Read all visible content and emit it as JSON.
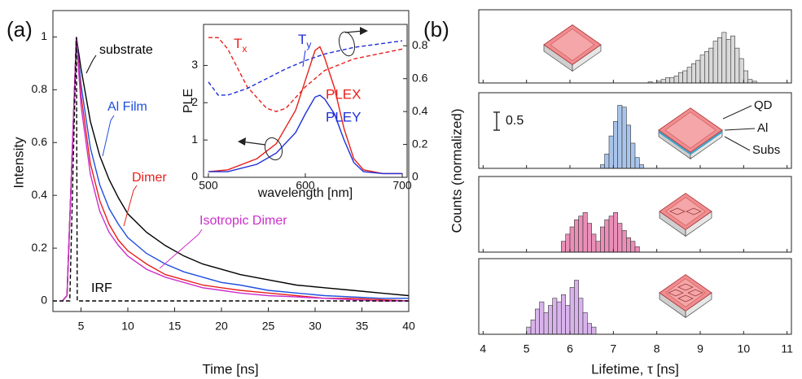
{
  "chart_data": [
    {
      "type": "line",
      "panel_label": "(a)",
      "xlabel": "Time [ns]",
      "ylabel": "Intensity",
      "xlim": [
        2,
        40
      ],
      "ylim": [
        -0.04,
        1.1
      ],
      "xticks": [
        5,
        10,
        15,
        20,
        25,
        30,
        35,
        40
      ],
      "yticks": [
        0,
        0.2,
        0.4,
        0.6,
        0.8,
        1
      ],
      "series": [
        {
          "name": "substrate",
          "color": "#000000",
          "x": [
            3,
            3.5,
            4,
            4.5,
            5,
            6,
            7,
            8,
            9,
            10,
            12,
            14,
            16,
            18,
            20,
            22,
            25,
            28,
            31,
            34,
            37,
            40
          ],
          "values": [
            0,
            0.02,
            0.5,
            1.0,
            0.88,
            0.68,
            0.55,
            0.46,
            0.39,
            0.33,
            0.26,
            0.21,
            0.17,
            0.14,
            0.12,
            0.1,
            0.08,
            0.06,
            0.05,
            0.04,
            0.03,
            0.02
          ]
        },
        {
          "name": "Al Film",
          "color": "#1f4fe0",
          "x": [
            3,
            3.5,
            4,
            4.5,
            5,
            6,
            7,
            8,
            9,
            10,
            12,
            14,
            16,
            18,
            20,
            22,
            25,
            28,
            31,
            34,
            37,
            40
          ],
          "values": [
            0,
            0.02,
            0.5,
            1.0,
            0.82,
            0.58,
            0.44,
            0.35,
            0.29,
            0.24,
            0.18,
            0.14,
            0.11,
            0.09,
            0.07,
            0.06,
            0.04,
            0.03,
            0.02,
            0.015,
            0.01,
            0.01
          ]
        },
        {
          "name": "Dimer",
          "color": "#e8201c",
          "x": [
            3,
            3.5,
            4,
            4.5,
            5,
            6,
            7,
            8,
            9,
            10,
            12,
            14,
            16,
            18,
            20,
            22,
            25,
            28,
            31,
            34,
            37,
            40
          ],
          "values": [
            0,
            0.02,
            0.5,
            1.0,
            0.78,
            0.52,
            0.38,
            0.29,
            0.23,
            0.19,
            0.14,
            0.1,
            0.08,
            0.06,
            0.05,
            0.04,
            0.03,
            0.02,
            0.01,
            0.01,
            0.005,
            0
          ]
        },
        {
          "name": "Isotropic Dimer",
          "color": "#cc2fcc",
          "x": [
            3,
            3.5,
            4,
            4.5,
            5,
            6,
            7,
            8,
            9,
            10,
            12,
            14,
            16,
            18,
            20,
            22,
            25,
            28,
            31,
            34,
            37,
            40
          ],
          "values": [
            0,
            0.02,
            0.5,
            1.0,
            0.74,
            0.48,
            0.34,
            0.26,
            0.21,
            0.17,
            0.12,
            0.09,
            0.07,
            0.05,
            0.04,
            0.03,
            0.02,
            0.015,
            0.01,
            0.005,
            0,
            0
          ]
        },
        {
          "name": "IRF",
          "color": "#000000",
          "dashed": true,
          "x": [
            2,
            3.8,
            4.5,
            4.6,
            40
          ],
          "values": [
            0,
            0,
            1,
            0,
            0
          ]
        }
      ]
    },
    {
      "type": "line",
      "xlabel": "wavelength [nm]",
      "ylabel": "PLE",
      "xlim": [
        495,
        705
      ],
      "ylim": [
        0,
        4.1
      ],
      "y2lim": [
        0,
        0.93
      ],
      "xticks": [
        500,
        600,
        700
      ],
      "yticks": [
        0,
        1,
        2,
        3
      ],
      "y2ticks": [
        0,
        0.2,
        0.4,
        0.6,
        0.8
      ],
      "series": [
        {
          "name": "PLEX",
          "color": "#e8201c",
          "x": [
            500,
            520,
            550,
            570,
            590,
            600,
            610,
            615,
            620,
            630,
            640,
            650,
            660,
            680,
            700
          ],
          "values": [
            0.15,
            0.2,
            0.5,
            0.9,
            1.8,
            2.6,
            3.4,
            3.5,
            3.2,
            2.4,
            1.3,
            0.5,
            0.2,
            0.1,
            0.1
          ]
        },
        {
          "name": "PLEY",
          "color": "#1f2fd8",
          "x": [
            500,
            520,
            550,
            570,
            590,
            600,
            610,
            615,
            620,
            630,
            640,
            650,
            660,
            680,
            700
          ],
          "values": [
            0.15,
            0.15,
            0.35,
            0.65,
            1.2,
            1.7,
            2.15,
            2.2,
            2.1,
            1.7,
            1.0,
            0.4,
            0.15,
            0.1,
            0.1
          ]
        },
        {
          "name": {
            "main": "T",
            "sub": "x"
          },
          "color": "#e8201c",
          "dashed": true,
          "axis": "y2",
          "x": [
            500,
            510,
            520,
            540,
            560,
            570,
            580,
            600,
            620,
            650,
            700
          ],
          "values": [
            0.85,
            0.85,
            0.78,
            0.55,
            0.42,
            0.4,
            0.42,
            0.55,
            0.65,
            0.72,
            0.78
          ]
        },
        {
          "name": {
            "main": "T",
            "sub": "y"
          },
          "color": "#1f2fd8",
          "dashed": true,
          "axis": "y2",
          "x": [
            500,
            510,
            520,
            540,
            560,
            580,
            600,
            620,
            650,
            700
          ],
          "values": [
            0.58,
            0.5,
            0.5,
            0.54,
            0.6,
            0.66,
            0.71,
            0.75,
            0.79,
            0.83
          ]
        }
      ]
    },
    {
      "type": "histogram",
      "panel_label": "(b)",
      "xlabel": "Lifetime, τ [ns]",
      "ylabel": "Counts (normalized)",
      "xlim": [
        3.9,
        11.1
      ],
      "ylim": [
        0,
        2.1
      ],
      "xticks": [
        4,
        5,
        6,
        7,
        8,
        9,
        10,
        11
      ],
      "scale_bar": 0.5,
      "layer_labels": [
        "QD",
        "Al",
        "Subs"
      ],
      "panels": [
        {
          "color": "#d9d9d9",
          "bins": [
            7.8,
            7.9,
            8.0,
            8.1,
            8.2,
            8.3,
            8.4,
            8.5,
            8.6,
            8.7,
            8.8,
            8.9,
            9.0,
            9.1,
            9.2,
            9.3,
            9.4,
            9.5,
            9.6,
            9.7,
            9.8,
            9.9,
            10.0,
            10.1,
            10.2,
            10.3
          ],
          "counts": [
            0.03,
            0,
            0.05,
            0.1,
            0.15,
            0.15,
            0.2,
            0.3,
            0.35,
            0.45,
            0.55,
            0.65,
            0.8,
            0.9,
            1.0,
            1.2,
            1.3,
            1.45,
            1.25,
            1.35,
            1.0,
            0.7,
            0.35,
            0.1,
            0.05
          ]
        },
        {
          "color": "#a9c4ea",
          "bins": [
            6.7,
            6.8,
            6.9,
            7.0,
            7.1,
            7.2,
            7.3,
            7.4,
            7.5,
            7.6,
            7.7
          ],
          "counts": [
            0.1,
            0.4,
            0.9,
            1.3,
            1.75,
            1.7,
            1.2,
            0.7,
            0.3,
            0.1
          ]
        },
        {
          "color": "#ea8fb8",
          "bins": [
            5.8,
            5.9,
            6.0,
            6.1,
            6.2,
            6.3,
            6.4,
            6.5,
            6.6,
            6.7,
            6.8,
            6.9,
            7.0,
            7.1,
            7.2,
            7.3,
            7.4,
            7.5,
            7.6
          ],
          "counts": [
            0.3,
            0.5,
            0.7,
            0.9,
            1.0,
            1.1,
            0.8,
            0.5,
            0.3,
            0.7,
            0.9,
            1.0,
            1.1,
            0.8,
            0.6,
            0.4,
            0.3,
            0.15
          ]
        },
        {
          "color": "#d9b3ec",
          "bins": [
            5.0,
            5.1,
            5.2,
            5.3,
            5.4,
            5.5,
            5.6,
            5.7,
            5.8,
            5.9,
            6.0,
            6.1,
            6.2,
            6.3,
            6.4,
            6.5,
            6.6
          ],
          "counts": [
            0.2,
            0.4,
            0.7,
            0.9,
            0.6,
            0.8,
            1.0,
            0.9,
            1.1,
            0.8,
            1.3,
            1.5,
            1.0,
            0.6,
            0.3,
            0.2
          ]
        }
      ]
    }
  ]
}
